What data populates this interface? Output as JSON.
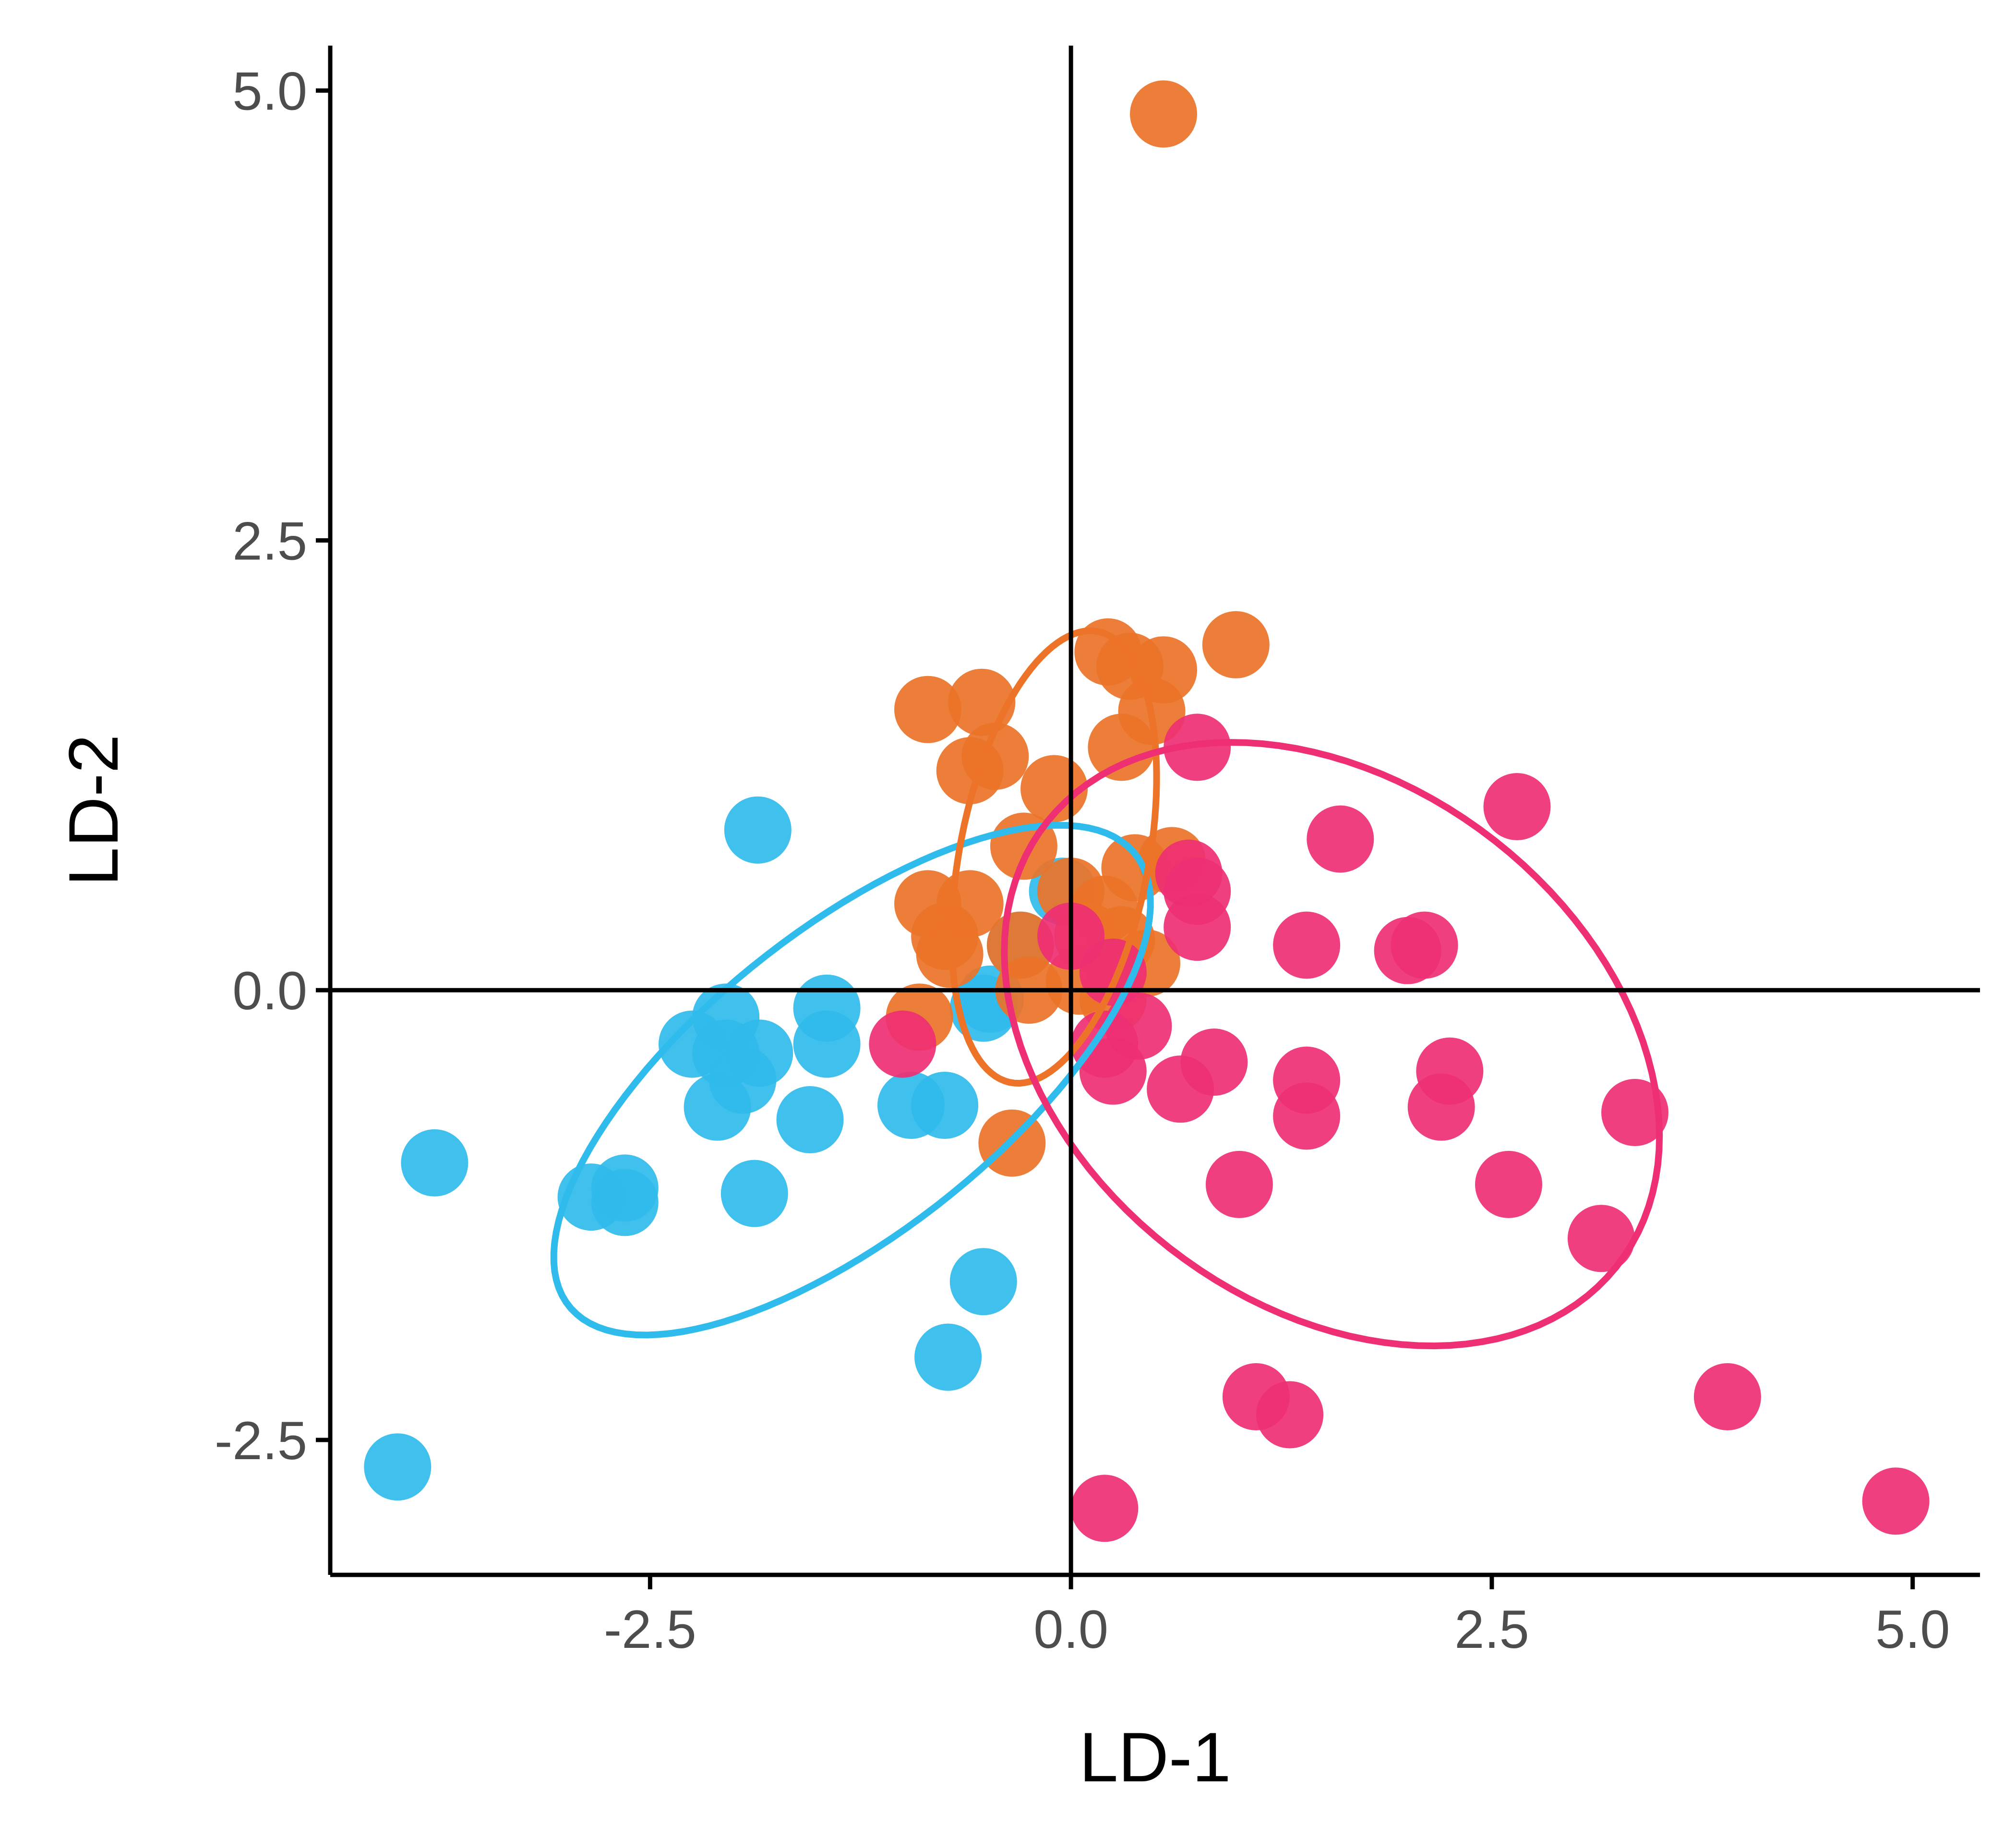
{
  "chart_data": {
    "type": "scatter",
    "title": "",
    "xlabel": "LD-1",
    "ylabel": "LD-2",
    "xlim": [
      -4.4,
      5.4
    ],
    "ylim": [
      -3.25,
      5.25
    ],
    "x_ticks": [
      -2.5,
      0.0,
      2.5,
      5.0
    ],
    "y_ticks": [
      -2.5,
      0.0,
      2.5,
      5.0
    ],
    "x_tick_labels": [
      "-2.5",
      "0.0",
      "2.5",
      "5.0"
    ],
    "y_tick_labels": [
      "-2.5",
      "0.0",
      "2.5",
      "5.0"
    ],
    "reference_lines": {
      "x": 0,
      "y": 0
    },
    "grid": false,
    "legend": "none",
    "series": [
      {
        "color": "#2fbbeb",
        "points": [
          [
            -1.86,
            0.89
          ],
          [
            -3.78,
            -0.96
          ],
          [
            -4.0,
            -2.65
          ],
          [
            -2.05,
            -0.15
          ],
          [
            -2.25,
            -0.3
          ],
          [
            -2.05,
            -0.35
          ],
          [
            -1.85,
            -0.35
          ],
          [
            -1.95,
            -0.5
          ],
          [
            -2.1,
            -0.65
          ],
          [
            -1.45,
            -0.1
          ],
          [
            -1.45,
            -0.3
          ],
          [
            -1.55,
            -0.72
          ],
          [
            -2.65,
            -1.1
          ],
          [
            -2.85,
            -1.15
          ],
          [
            -2.65,
            -1.18
          ],
          [
            -1.88,
            -1.13
          ],
          [
            -0.95,
            -0.64
          ],
          [
            -0.75,
            -0.64
          ],
          [
            -0.52,
            -0.1
          ],
          [
            -0.48,
            -0.05
          ],
          [
            -0.05,
            0.55
          ],
          [
            -0.3,
            0.25
          ],
          [
            -0.52,
            -1.62
          ],
          [
            -0.73,
            -2.04
          ]
        ],
        "ellipse": {
          "cx": -1.3,
          "cy": -0.5,
          "rx": 2.1,
          "ry": 0.86,
          "angle_deg": 36
        }
      },
      {
        "color": "#ec7328",
        "points": [
          [
            0.55,
            4.87
          ],
          [
            0.22,
            1.88
          ],
          [
            0.35,
            1.8
          ],
          [
            0.55,
            1.78
          ],
          [
            0.98,
            1.92
          ],
          [
            -0.85,
            1.56
          ],
          [
            -0.53,
            1.6
          ],
          [
            0.3,
            1.35
          ],
          [
            0.48,
            1.55
          ],
          [
            -0.45,
            1.3
          ],
          [
            -0.6,
            1.22
          ],
          [
            -0.1,
            1.12
          ],
          [
            -0.28,
            0.8
          ],
          [
            0.38,
            0.68
          ],
          [
            0.6,
            0.72
          ],
          [
            -0.85,
            0.48
          ],
          [
            -0.6,
            0.48
          ],
          [
            -0.75,
            0.3
          ],
          [
            -0.3,
            0.25
          ],
          [
            -0.72,
            0.2
          ],
          [
            0.0,
            0.55
          ],
          [
            0.2,
            0.45
          ],
          [
            0.1,
            0.3
          ],
          [
            0.05,
            0.05
          ],
          [
            -0.25,
            0.0
          ],
          [
            0.25,
            -0.05
          ],
          [
            -0.9,
            -0.15
          ],
          [
            -0.35,
            -0.85
          ],
          [
            0.45,
            0.15
          ],
          [
            0.3,
            0.28
          ]
        ],
        "ellipse": {
          "cx": -0.1,
          "cy": 0.74,
          "rx": 1.28,
          "ry": 0.56,
          "angle_deg": 78
        }
      },
      {
        "color": "#ee2f73",
        "points": [
          [
            0.75,
            1.35
          ],
          [
            2.65,
            1.02
          ],
          [
            1.6,
            0.84
          ],
          [
            0.7,
            0.65
          ],
          [
            0.75,
            0.55
          ],
          [
            0.75,
            0.35
          ],
          [
            1.4,
            0.25
          ],
          [
            2.0,
            0.22
          ],
          [
            2.1,
            0.25
          ],
          [
            -1.0,
            -0.3
          ],
          [
            0.2,
            -0.3
          ],
          [
            0.4,
            -0.2
          ],
          [
            0.25,
            -0.45
          ],
          [
            0.85,
            -0.4
          ],
          [
            0.65,
            -0.55
          ],
          [
            1.4,
            -0.5
          ],
          [
            1.4,
            -0.7
          ],
          [
            2.25,
            -0.45
          ],
          [
            2.2,
            -0.65
          ],
          [
            3.35,
            -0.68
          ],
          [
            1.0,
            -1.08
          ],
          [
            2.6,
            -1.08
          ],
          [
            3.15,
            -1.38
          ],
          [
            1.1,
            -2.26
          ],
          [
            1.3,
            -2.36
          ],
          [
            3.9,
            -2.26
          ],
          [
            4.9,
            -2.84
          ],
          [
            0.2,
            -2.88
          ],
          [
            0.0,
            0.3
          ],
          [
            0.25,
            0.1
          ]
        ],
        "ellipse": {
          "cx": 1.55,
          "cy": -0.3,
          "rx": 2.1,
          "ry": 1.48,
          "angle_deg": -32
        }
      }
    ]
  }
}
